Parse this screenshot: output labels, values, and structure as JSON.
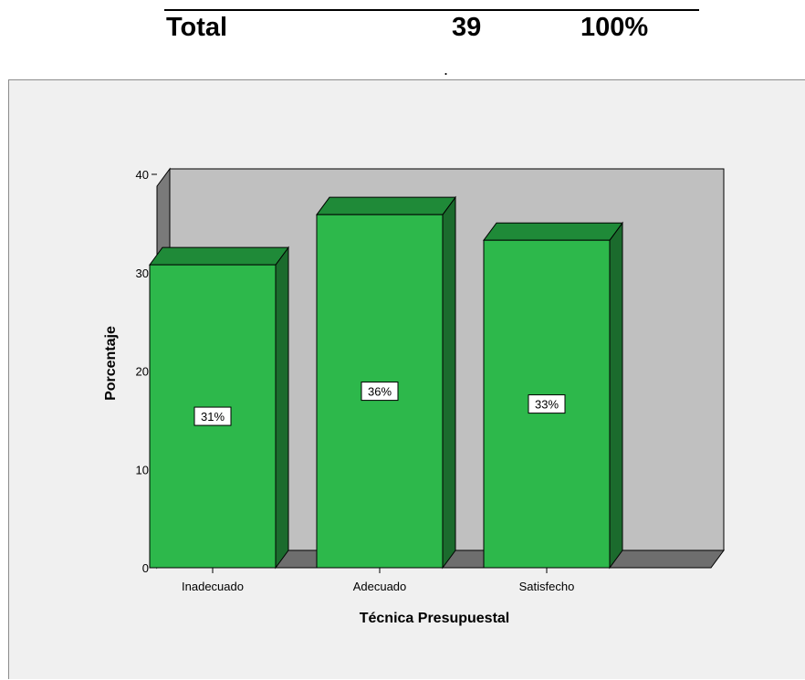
{
  "table": {
    "label": "Total",
    "count": "39",
    "percent": "100%"
  },
  "dot": ".",
  "colors": {
    "bar_front": "#2db84b",
    "bar_top": "#1f8a38",
    "bar_side": "#1b6b2d",
    "back_wall": "#c0c0c0",
    "floor": "#6e6e6e",
    "left_wall": "#7a7a7a",
    "frame_bg": "#f0f0f0"
  },
  "chart_data": {
    "type": "bar",
    "title": "",
    "xlabel": "Técnica Presupuestal",
    "ylabel": "Porcentaje",
    "categories": [
      "Inadecuado",
      "Adecuado",
      "Satisfecho"
    ],
    "values": [
      30.8,
      35.9,
      33.3
    ],
    "data_labels": [
      "31%",
      "36%",
      "33%"
    ],
    "ylim": [
      0,
      40
    ],
    "yticks": [
      0,
      10,
      20,
      30,
      40
    ],
    "style": "3d",
    "grid": false,
    "legend": "none"
  }
}
